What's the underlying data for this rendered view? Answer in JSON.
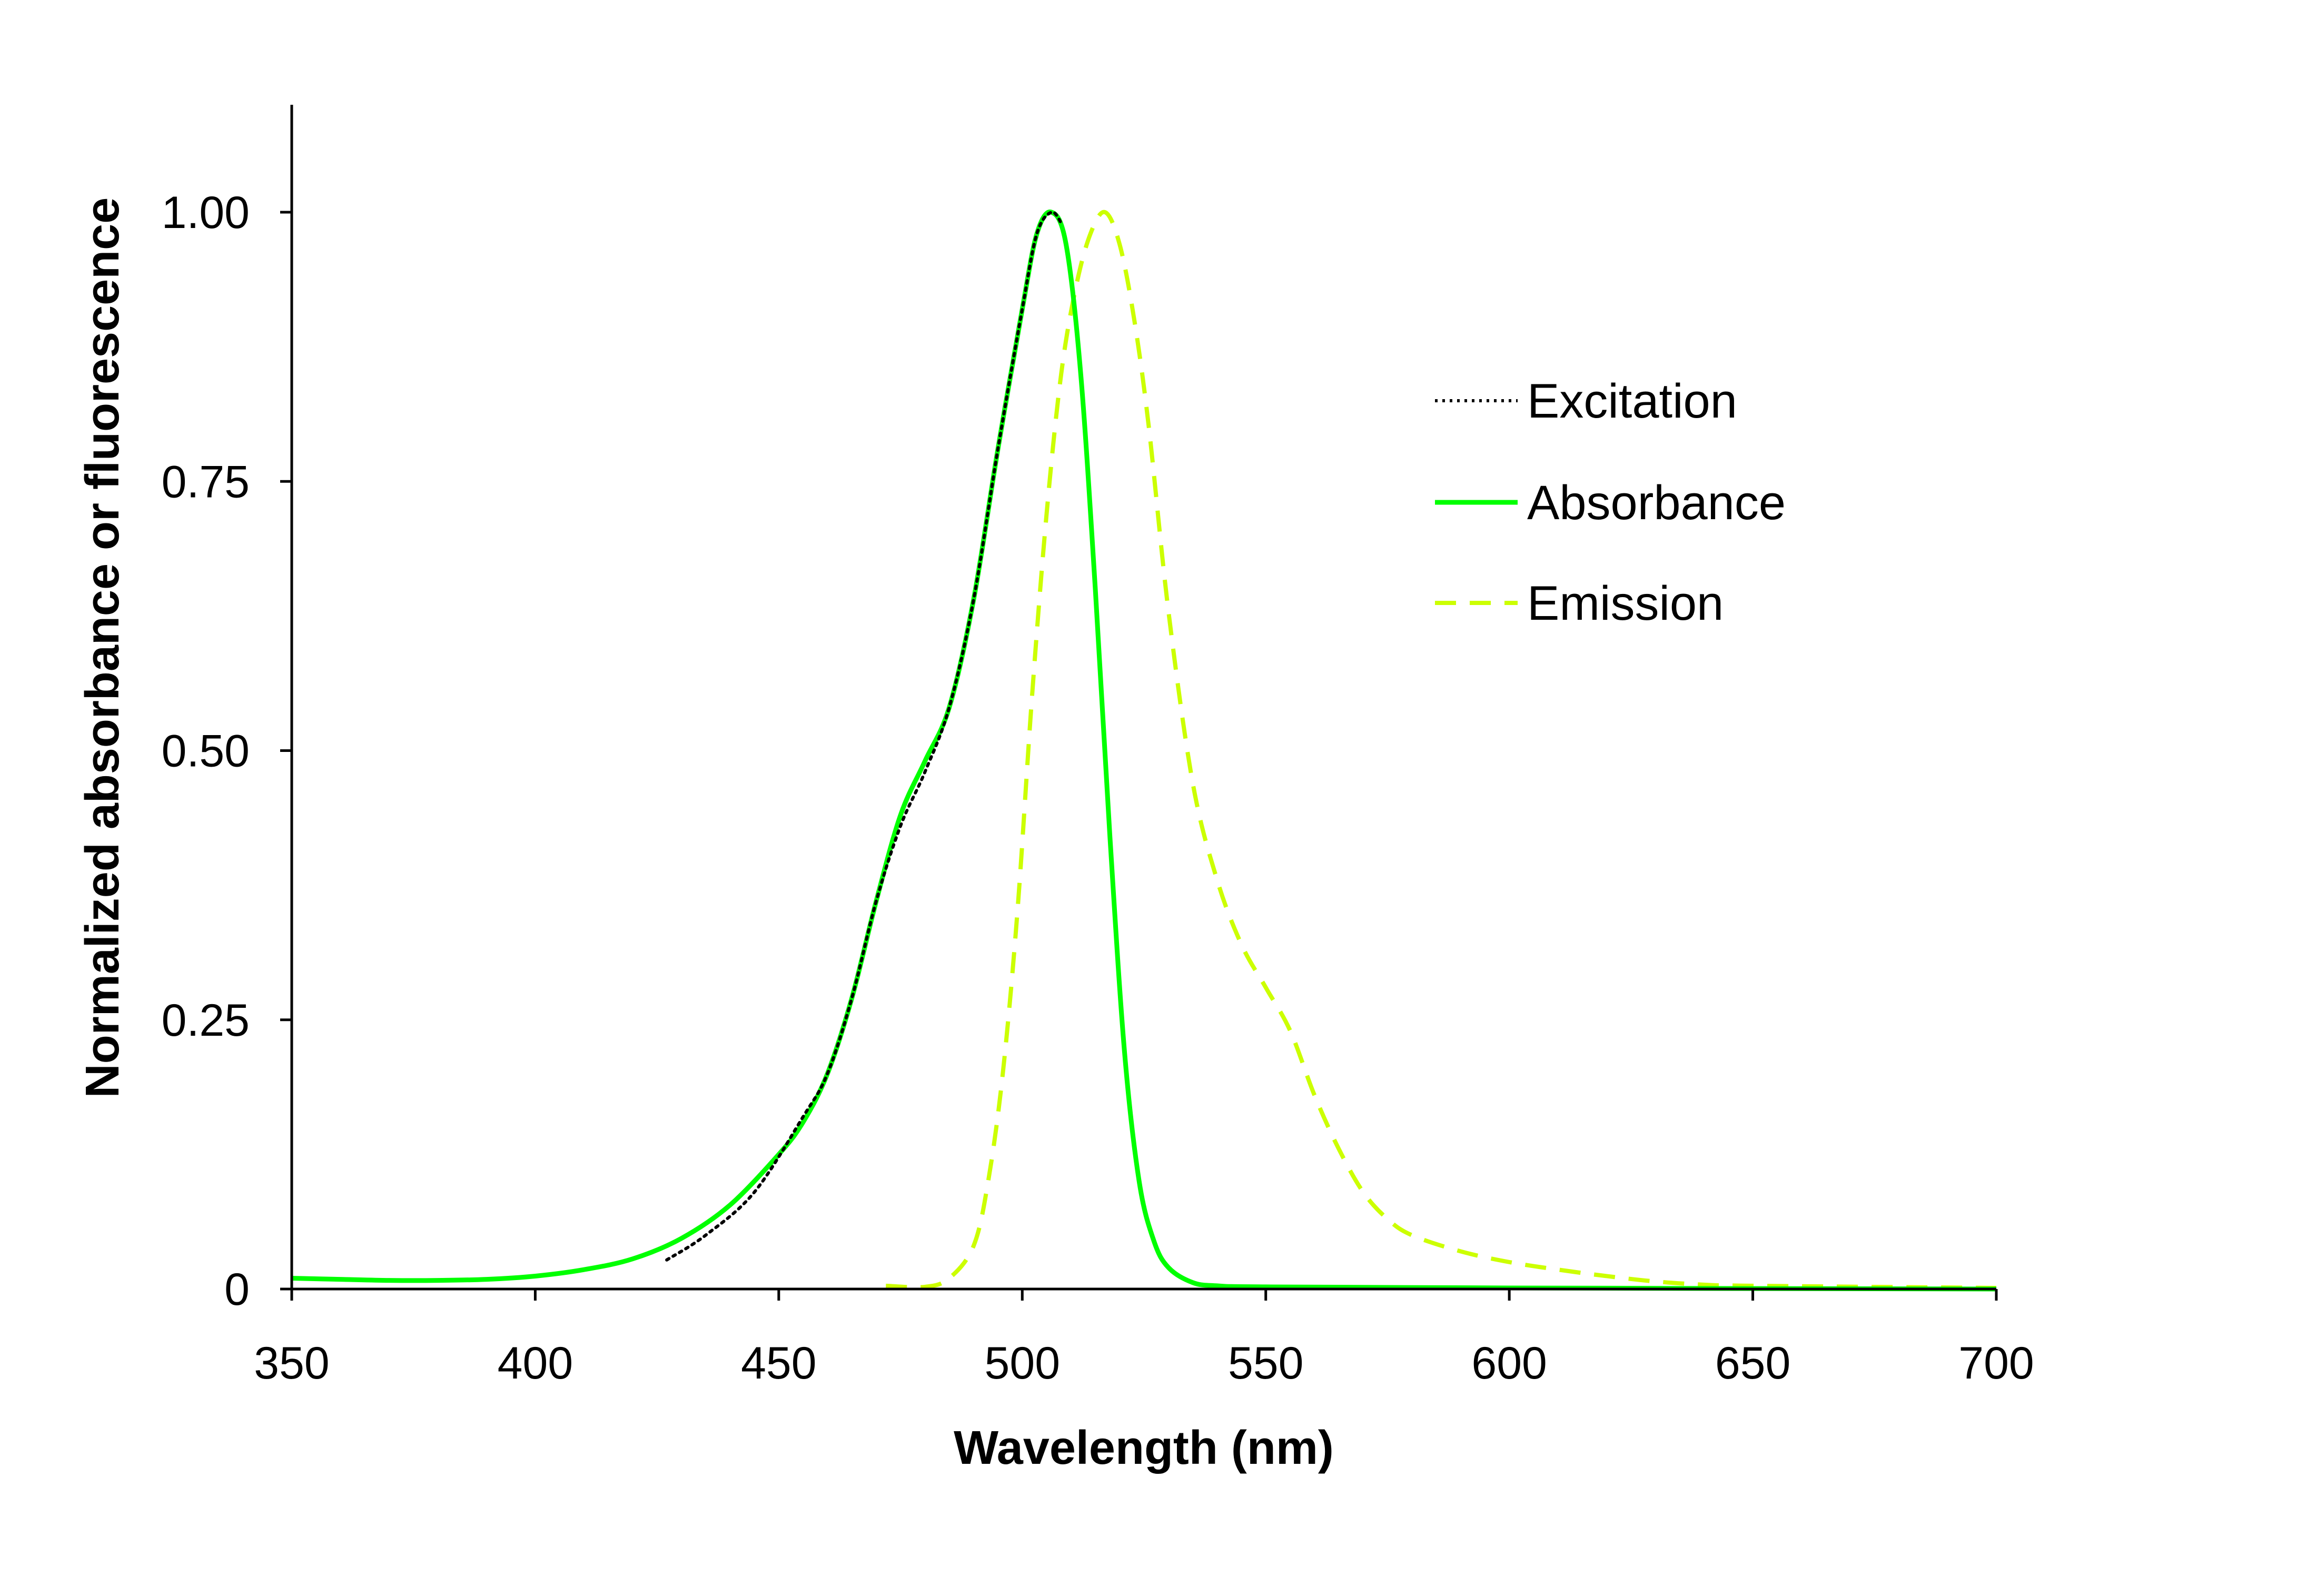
{
  "chart_data": {
    "type": "line",
    "title": "",
    "xlabel": "Wavelength (nm)",
    "ylabel": "Normalized absorbance or fluorescence",
    "xlim": [
      350,
      700
    ],
    "ylim": [
      0,
      1.1
    ],
    "xticks": [
      350,
      400,
      450,
      500,
      550,
      600,
      650,
      700
    ],
    "xtick_labels": [
      "350",
      "400",
      "450",
      "500",
      "550",
      "600",
      "650",
      "700"
    ],
    "yticks": [
      0,
      0.25,
      0.5,
      0.75,
      1.0
    ],
    "ytick_labels": [
      "0",
      "0.25",
      "0.50",
      "0.75",
      "1.00"
    ],
    "grid": false,
    "legend_position": "top-right",
    "series": [
      {
        "name": "Excitation",
        "color": "#000000",
        "style": "dotted",
        "x": [
          427,
          435,
          445,
          455,
          460,
          465,
          470,
          475,
          480,
          485,
          490,
          495,
          500,
          503,
          506,
          508
        ],
        "y": [
          0.027,
          0.05,
          0.09,
          0.16,
          0.2,
          0.27,
          0.36,
          0.43,
          0.48,
          0.54,
          0.64,
          0.78,
          0.91,
          0.98,
          1.0,
          0.99
        ]
      },
      {
        "name": "Absorbance",
        "color": "#00ff00",
        "style": "solid",
        "x": [
          350,
          360,
          370,
          380,
          390,
          400,
          410,
          420,
          430,
          440,
          450,
          455,
          460,
          465,
          470,
          475,
          480,
          485,
          490,
          495,
          500,
          503,
          506,
          509,
          512,
          515,
          518,
          521,
          524,
          527,
          530,
          535,
          540,
          550,
          600,
          700
        ],
        "y": [
          0.01,
          0.009,
          0.008,
          0.008,
          0.009,
          0.012,
          0.018,
          0.028,
          0.047,
          0.078,
          0.125,
          0.155,
          0.2,
          0.27,
          0.36,
          0.44,
          0.49,
          0.54,
          0.64,
          0.78,
          0.91,
          0.98,
          1.0,
          0.97,
          0.85,
          0.65,
          0.42,
          0.22,
          0.1,
          0.045,
          0.02,
          0.006,
          0.003,
          0.002,
          0.001,
          0.0
        ]
      },
      {
        "name": "Emission",
        "color": "#ccff00",
        "style": "dashed",
        "x": [
          472,
          480,
          485,
          490,
          493,
          496,
          499,
          502,
          505,
          508,
          511,
          514,
          517,
          520,
          523,
          526,
          530,
          535,
          540,
          545,
          550,
          555,
          560,
          565,
          570,
          575,
          580,
          590,
          600,
          610,
          620,
          630,
          640,
          650,
          700
        ],
        "y": [
          0.003,
          0.002,
          0.01,
          0.04,
          0.1,
          0.2,
          0.35,
          0.55,
          0.72,
          0.85,
          0.93,
          0.98,
          1.0,
          0.97,
          0.9,
          0.8,
          0.63,
          0.47,
          0.38,
          0.32,
          0.28,
          0.24,
          0.18,
          0.13,
          0.09,
          0.065,
          0.05,
          0.035,
          0.025,
          0.018,
          0.012,
          0.007,
          0.004,
          0.003,
          0.001
        ]
      }
    ]
  }
}
